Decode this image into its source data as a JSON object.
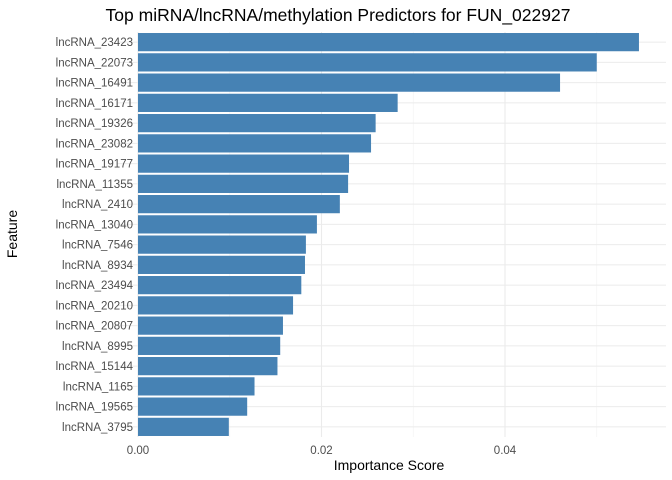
{
  "chart_data": {
    "type": "bar",
    "orientation": "horizontal",
    "title": "Top miRNA/lncRNA/methylation Predictors for FUN_022927",
    "xlabel": "Importance Score",
    "ylabel": "Feature",
    "xlim": [
      0,
      0.0556
    ],
    "xticks": [
      0,
      0.02,
      0.04
    ],
    "xtick_labels": [
      "0.00",
      "0.02",
      "0.04"
    ],
    "grid": true,
    "bar_color": "#4682B4",
    "categories": [
      "lncRNA_23423",
      "lncRNA_22073",
      "lncRNA_16491",
      "lncRNA_16171",
      "lncRNA_19326",
      "lncRNA_23082",
      "lncRNA_19177",
      "lncRNA_11355",
      "lncRNA_2410",
      "lncRNA_13040",
      "lncRNA_7546",
      "lncRNA_8934",
      "lncRNA_23494",
      "lncRNA_20210",
      "lncRNA_20807",
      "lncRNA_8995",
      "lncRNA_15144",
      "lncRNA_1165",
      "lncRNA_19565",
      "lncRNA_3795"
    ],
    "values": [
      0.0546,
      0.05,
      0.046,
      0.0283,
      0.0259,
      0.0254,
      0.023,
      0.0229,
      0.022,
      0.0195,
      0.0183,
      0.0182,
      0.0178,
      0.0169,
      0.0158,
      0.0155,
      0.0152,
      0.0127,
      0.0119,
      0.0099
    ]
  }
}
